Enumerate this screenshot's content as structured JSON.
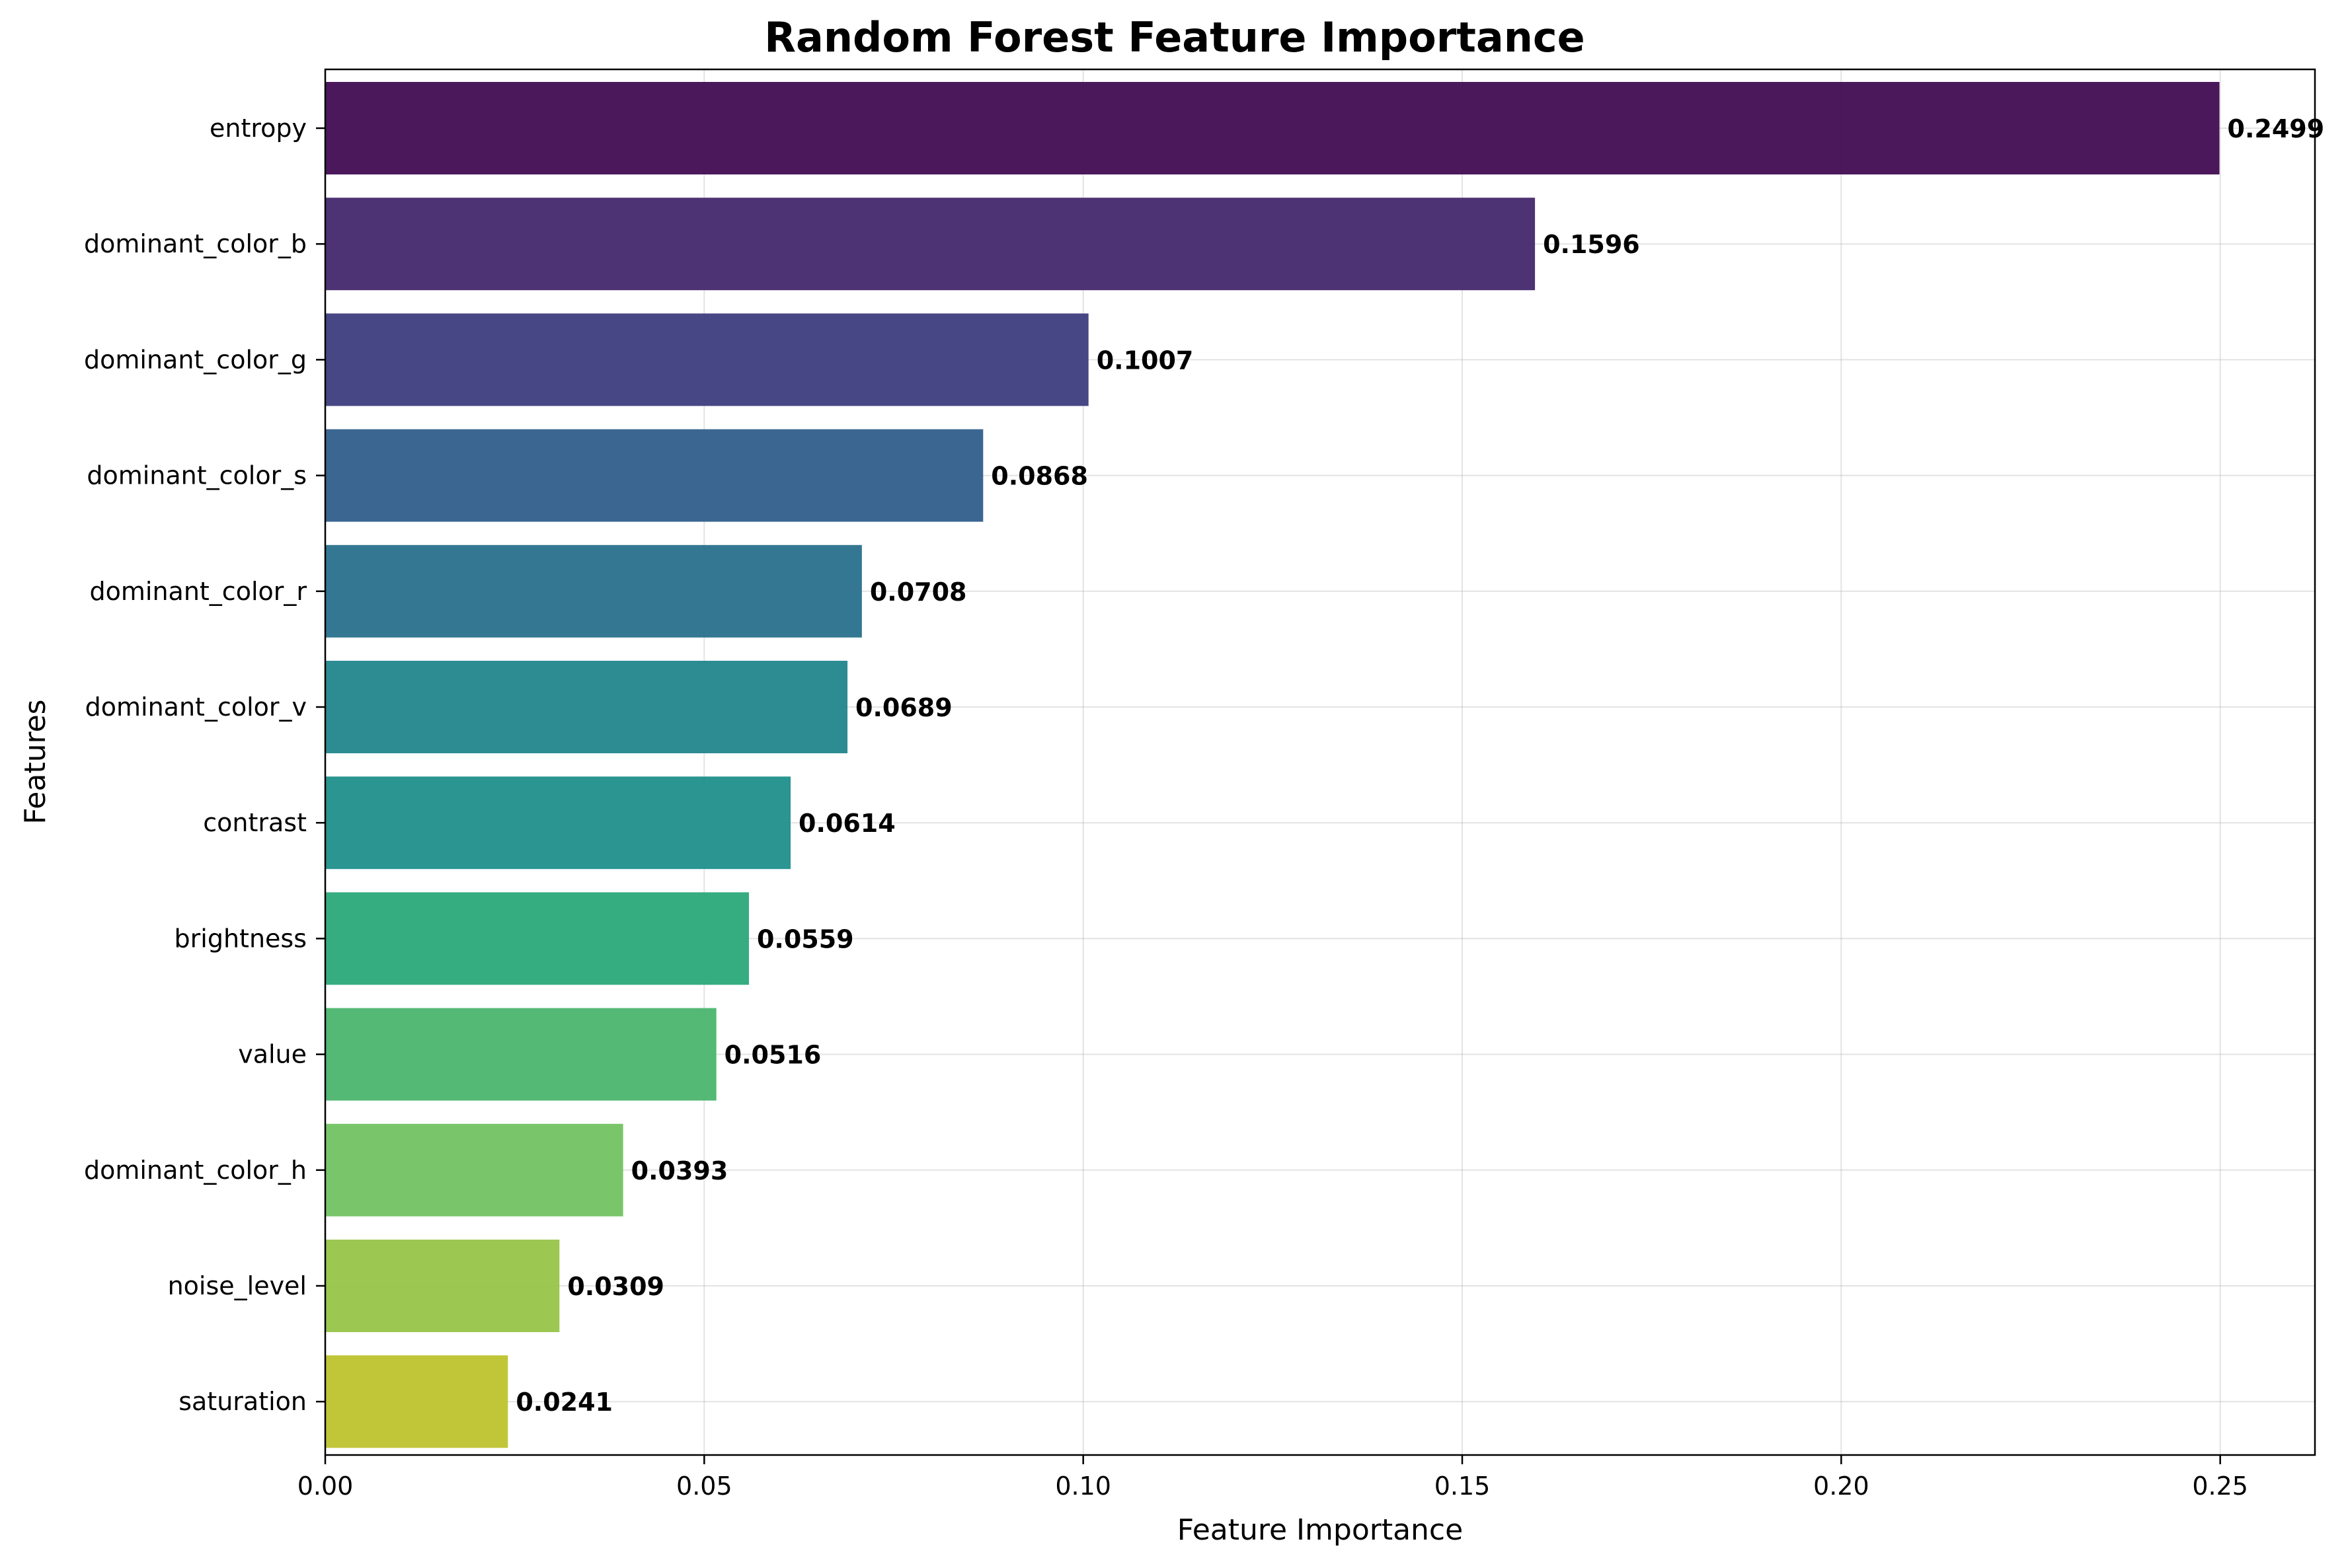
{
  "chart_data": {
    "type": "bar",
    "orientation": "horizontal",
    "title": "Random Forest Feature Importance",
    "xlabel": "Feature Importance",
    "ylabel": "Features",
    "xlim": [
      0,
      0.2625
    ],
    "x_ticks": [
      0,
      0.05,
      0.1,
      0.15,
      0.2,
      0.25
    ],
    "x_tick_labels": [
      "0.00",
      "0.05",
      "0.10",
      "0.15",
      "0.20",
      "0.25"
    ],
    "grid": true,
    "categories": [
      "entropy",
      "dominant_color_b",
      "dominant_color_g",
      "dominant_color_s",
      "dominant_color_r",
      "dominant_color_v",
      "contrast",
      "brightness",
      "value",
      "dominant_color_h",
      "noise_level",
      "saturation"
    ],
    "values": [
      0.2499,
      0.1596,
      0.1007,
      0.0868,
      0.0708,
      0.0689,
      0.0614,
      0.0559,
      0.0516,
      0.0393,
      0.0309,
      0.0241
    ],
    "value_labels": [
      "0.2499",
      "0.1596",
      "0.1007",
      "0.0868",
      "0.0708",
      "0.0689",
      "0.0614",
      "0.0559",
      "0.0516",
      "0.0393",
      "0.0309",
      "0.0241"
    ],
    "colors": [
      "#440f54",
      "#472b6e",
      "#413f80",
      "#33608d",
      "#2c718e",
      "#24878e",
      "#21918c",
      "#2ea97c",
      "#4cb66f",
      "#74c464",
      "#98c54a",
      "#bec430"
    ]
  }
}
